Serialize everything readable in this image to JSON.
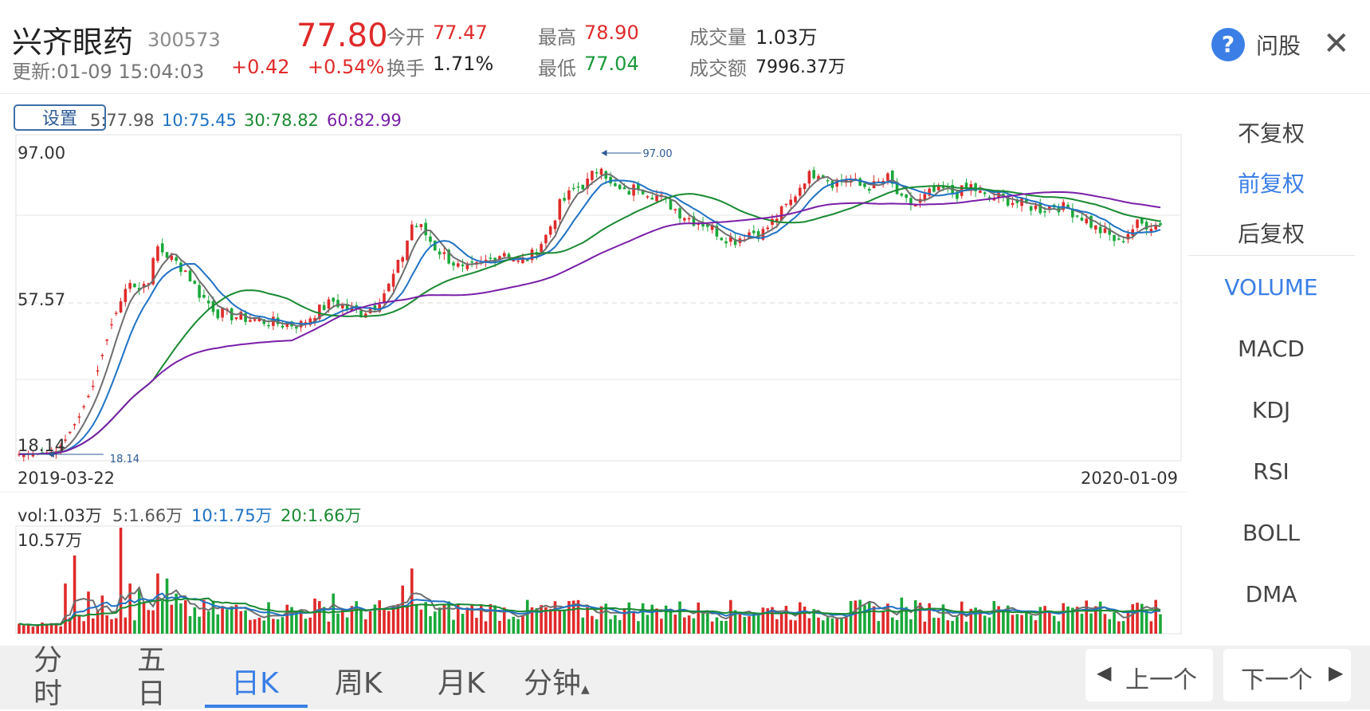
{
  "header": {
    "stock_name": "兴齐眼药",
    "stock_code": "300573",
    "update_time": "更新:01-09 15:04:03",
    "price": "77.80",
    "change": "+0.42",
    "change_pct": "+0.54%",
    "open_label": "今开",
    "open_value": "77.47",
    "turnover_label": "换手",
    "turnover_value": "1.71%",
    "high_label": "最高",
    "high_value": "78.90",
    "low_label": "最低",
    "low_value": "77.04",
    "volume_label": "成交量",
    "volume_value": "1.03万",
    "amount_label": "成交额",
    "amount_value": "7996.37万",
    "ask_label": "问股",
    "help_glyph": "?",
    "close_glyph": "✕"
  },
  "legend": {
    "settings_label": "设置",
    "ma5": "5:77.98",
    "ma10": "10:75.45",
    "ma30": "30:78.82",
    "ma60": "60:82.99"
  },
  "vol_legend": {
    "vol": "vol:1.03万",
    "ma5": "5:1.66万",
    "ma10": "10:1.75万",
    "ma20": "20:1.66万"
  },
  "side_menu": {
    "items": [
      {
        "label": "不复权"
      },
      {
        "label": "前复权"
      },
      {
        "label": "后复权"
      },
      {
        "label": "VOLUME"
      },
      {
        "label": "MACD"
      },
      {
        "label": "KDJ"
      },
      {
        "label": "RSI"
      },
      {
        "label": "BOLL"
      },
      {
        "label": "DMA"
      }
    ]
  },
  "bottom_tabs": {
    "tabs": [
      {
        "label": "分时"
      },
      {
        "label": "五日"
      },
      {
        "label": "日K"
      },
      {
        "label": "周K"
      },
      {
        "label": "月K"
      },
      {
        "label": "分钟"
      }
    ],
    "prev_label": "上一个",
    "next_label": "下一个"
  },
  "colors": {
    "up": "#e02a2a",
    "down": "#1aa83a",
    "ma5": "#6e6e6e",
    "ma10": "#1f72c4",
    "ma30": "#1a8a32",
    "ma60": "#7a1fa8",
    "accent": "#3b7fe6"
  },
  "chart_data": [
    {
      "type": "candlestick",
      "start_date": "2019-03-22",
      "end_date": "2020-01-09",
      "y_ticks": [
        "97.00",
        "57.57",
        "18.14"
      ],
      "ylim": [
        18.14,
        97.0
      ],
      "max_marker": "97.00",
      "min_marker": "18.14",
      "x_labels": [
        "2019-03-22",
        "2020-01-09"
      ],
      "close_anchors": [
        [
          0,
          18.2
        ],
        [
          4,
          18.3
        ],
        [
          8,
          19.0
        ],
        [
          10,
          22.0
        ],
        [
          13,
          28
        ],
        [
          16,
          36
        ],
        [
          18,
          44
        ],
        [
          20,
          52
        ],
        [
          22,
          58
        ],
        [
          24,
          64
        ],
        [
          26,
          61
        ],
        [
          28,
          64
        ],
        [
          30,
          72
        ],
        [
          33,
          69
        ],
        [
          36,
          66
        ],
        [
          39,
          60
        ],
        [
          43,
          55
        ],
        [
          47,
          54
        ],
        [
          52,
          53
        ],
        [
          57,
          52
        ],
        [
          61,
          52
        ],
        [
          64,
          55
        ],
        [
          68,
          58
        ],
        [
          71,
          56
        ],
        [
          74,
          55
        ],
        [
          77,
          57
        ],
        [
          80,
          62
        ],
        [
          83,
          70
        ],
        [
          85,
          78
        ],
        [
          87,
          77
        ],
        [
          90,
          72
        ],
        [
          93,
          69
        ],
        [
          96,
          66
        ],
        [
          99,
          67
        ],
        [
          102,
          69
        ],
        [
          105,
          71
        ],
        [
          108,
          68
        ],
        [
          111,
          70
        ],
        [
          114,
          75
        ],
        [
          117,
          83
        ],
        [
          120,
          87
        ],
        [
          123,
          89
        ],
        [
          126,
          94
        ],
        [
          128,
          88
        ],
        [
          131,
          86
        ],
        [
          134,
          88
        ],
        [
          137,
          86
        ],
        [
          140,
          84
        ],
        [
          143,
          81
        ],
        [
          146,
          79
        ],
        [
          149,
          78
        ],
        [
          152,
          75
        ],
        [
          155,
          74
        ],
        [
          158,
          76
        ],
        [
          161,
          76
        ],
        [
          164,
          80
        ],
        [
          167,
          84
        ],
        [
          170,
          90
        ],
        [
          173,
          92
        ],
        [
          176,
          89
        ],
        [
          179,
          90
        ],
        [
          182,
          88
        ],
        [
          185,
          88
        ],
        [
          188,
          90
        ],
        [
          191,
          84
        ],
        [
          194,
          83
        ],
        [
          197,
          86
        ],
        [
          200,
          87
        ],
        [
          203,
          86
        ],
        [
          206,
          88
        ],
        [
          209,
          85
        ],
        [
          212,
          85
        ],
        [
          215,
          84
        ],
        [
          218,
          83
        ],
        [
          221,
          82
        ],
        [
          224,
          83
        ],
        [
          227,
          82
        ],
        [
          230,
          80
        ],
        [
          233,
          77
        ],
        [
          236,
          75
        ],
        [
          238,
          73
        ],
        [
          240,
          76
        ],
        [
          242,
          78
        ],
        [
          244,
          78
        ],
        [
          247,
          77.8
        ]
      ],
      "volume": {
        "y_tick": "10.57万",
        "peak": 10.57,
        "spikes": [
          [
            0,
            1
          ],
          [
            10,
            5
          ],
          [
            12,
            7.8
          ],
          [
            15,
            4.2
          ],
          [
            18,
            3.8
          ],
          [
            22,
            10.57
          ],
          [
            24,
            5
          ],
          [
            26,
            4.5
          ],
          [
            30,
            6
          ],
          [
            32,
            5.5
          ],
          [
            34,
            4
          ],
          [
            64,
            3.5
          ],
          [
            68,
            4
          ],
          [
            83,
            4.8
          ],
          [
            85,
            6.5
          ],
          [
            120,
            3.3
          ],
          [
            140,
            2.8
          ],
          [
            170,
            2.7
          ],
          [
            191,
            3.6
          ],
          [
            207,
            2.6
          ],
          [
            234,
            3.2
          ],
          [
            244,
            2.3
          ]
        ]
      }
    }
  ]
}
